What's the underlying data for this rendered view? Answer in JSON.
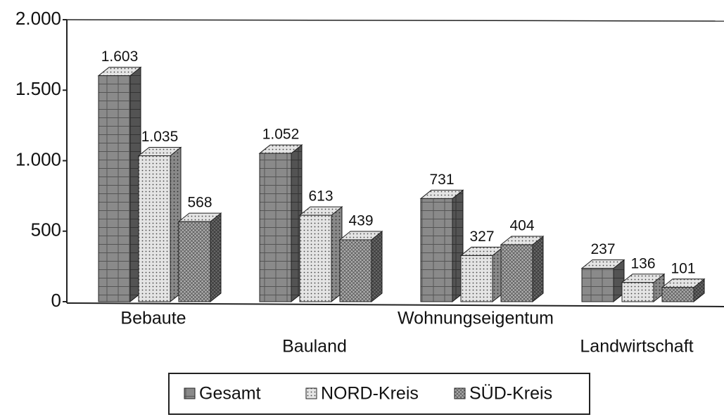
{
  "chart_data": {
    "type": "bar3d",
    "categories": [
      "Bebaute",
      "Bauland",
      "Wohnungseigentum",
      "Landwirtschaft"
    ],
    "series": [
      {
        "name": "Gesamt",
        "color": "#8a8a8a",
        "values": [
          1603,
          1052,
          731,
          237
        ],
        "value_labels": [
          "1.603",
          "1.052",
          "731",
          "237"
        ]
      },
      {
        "name": "NORD-Kreis",
        "color": "#e4e4e4",
        "values": [
          1035,
          613,
          327,
          136
        ],
        "value_labels": [
          "1.035",
          "613",
          "327",
          "136"
        ]
      },
      {
        "name": "SÜD-Kreis",
        "color": "#adadad",
        "values": [
          568,
          439,
          404,
          101
        ],
        "value_labels": [
          "568",
          "439",
          "404",
          "101"
        ]
      }
    ],
    "ylim": [
      0,
      2000
    ],
    "yticks": [
      0,
      500,
      {
        "value": 1000,
        "label": "1.000"
      },
      {
        "value": 1500,
        "label": "1.500"
      },
      {
        "value": 2000,
        "label": "2.000"
      }
    ],
    "grid": false,
    "legend": "bottom"
  }
}
